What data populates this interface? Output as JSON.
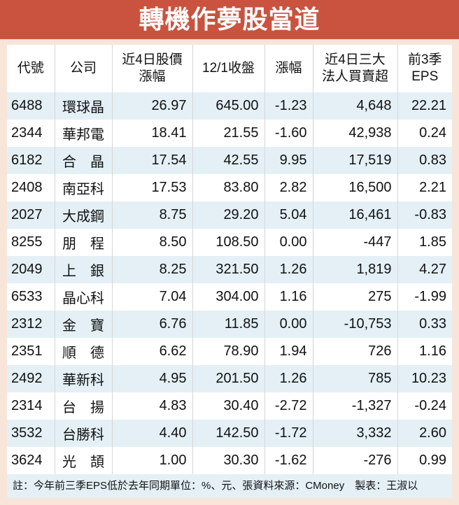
{
  "title": "轉機作夢股當道",
  "headers": [
    "代號",
    "公司",
    "近4日股價\n漲幅",
    "12/1收盤",
    "漲幅",
    "近4日三大\n法人買賣超",
    "前3季\nEPS"
  ],
  "rows": [
    [
      "6488",
      "環球晶",
      "26.97",
      "645.00",
      "-1.23",
      "4,648",
      "22.21"
    ],
    [
      "2344",
      "華邦電",
      "18.41",
      "21.55",
      "-1.60",
      "42,938",
      "0.24"
    ],
    [
      "6182",
      "合　晶",
      "17.54",
      "42.55",
      "9.95",
      "17,519",
      "0.83"
    ],
    [
      "2408",
      "南亞科",
      "17.53",
      "83.80",
      "2.82",
      "16,500",
      "2.21"
    ],
    [
      "2027",
      "大成鋼",
      "8.75",
      "29.20",
      "5.04",
      "16,461",
      "-0.83"
    ],
    [
      "8255",
      "朋　程",
      "8.50",
      "108.50",
      "0.00",
      "-447",
      "1.85"
    ],
    [
      "2049",
      "上　銀",
      "8.25",
      "321.50",
      "1.26",
      "1,819",
      "4.27"
    ],
    [
      "6533",
      "晶心科",
      "7.04",
      "304.00",
      "1.16",
      "275",
      "-1.99"
    ],
    [
      "2312",
      "金　寶",
      "6.76",
      "11.85",
      "0.00",
      "-10,753",
      "0.33"
    ],
    [
      "2351",
      "順　德",
      "6.62",
      "78.90",
      "1.94",
      "726",
      "1.16"
    ],
    [
      "2492",
      "華新科",
      "4.95",
      "201.50",
      "1.26",
      "785",
      "10.23"
    ],
    [
      "2314",
      "台　揚",
      "4.83",
      "30.40",
      "-2.72",
      "-1,327",
      "-0.24"
    ],
    [
      "3532",
      "台勝科",
      "4.40",
      "142.50",
      "-1.72",
      "3,332",
      "2.60"
    ],
    [
      "3624",
      "光　頡",
      "1.00",
      "30.30",
      "-1.62",
      "-276",
      "0.99"
    ]
  ],
  "footnote": "註：今年前三季EPS低於去年同期單位：%、元、張資料來源：CMoney　製表：王淑以",
  "colors": {
    "title_bg": "#c9533f",
    "page_bg": "#f8e5d9",
    "row_alt": "#e4f0f6"
  }
}
